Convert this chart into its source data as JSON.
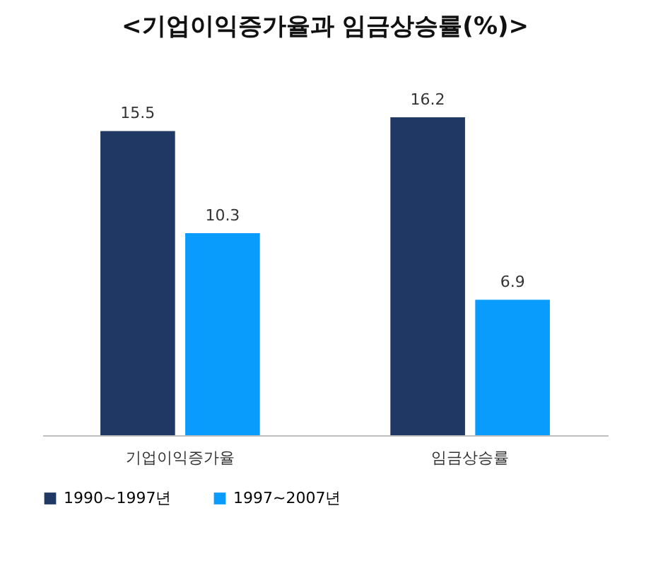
{
  "chart_data": {
    "type": "bar",
    "title": "<기업이익증가율과 임금상승률(%)>",
    "categories": [
      "기업이익증가율",
      "임금상승률"
    ],
    "series": [
      {
        "name": "1990~1997년",
        "color": "#203864",
        "values": [
          15.5,
          16.2
        ]
      },
      {
        "name": "1997~2007년",
        "color": "#0a9cfc",
        "values": [
          10.3,
          6.9
        ]
      }
    ],
    "data_labels": true,
    "legend": "bottom"
  }
}
